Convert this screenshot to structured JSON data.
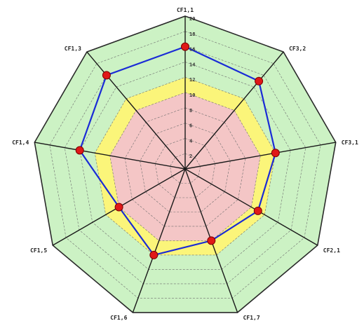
{
  "chart_data": {
    "type": "radar",
    "axes": [
      "CF1,1",
      "CF3,2",
      "CF3,1",
      "CF2,1",
      "CF1,7",
      "CF1,6",
      "CF1,5",
      "CF1,4",
      "CF1,3"
    ],
    "rlim": [
      0,
      20
    ],
    "ticks": [
      "2",
      "4",
      "6",
      "8",
      "10",
      "12",
      "14",
      "16",
      "18",
      "20"
    ],
    "bands": [
      {
        "from": 0,
        "to": 10,
        "color": "#f4c6c6"
      },
      {
        "from": 10,
        "to": 12,
        "color": "#fbf57a"
      },
      {
        "from": 12,
        "to": 20,
        "color": "#ccf2c4"
      }
    ],
    "series": [
      {
        "values": [
          16,
          15,
          12,
          11,
          10,
          12,
          10,
          14,
          16
        ],
        "color": "#1a2bd6",
        "marker_color": "#e01818"
      }
    ],
    "grid": true
  }
}
